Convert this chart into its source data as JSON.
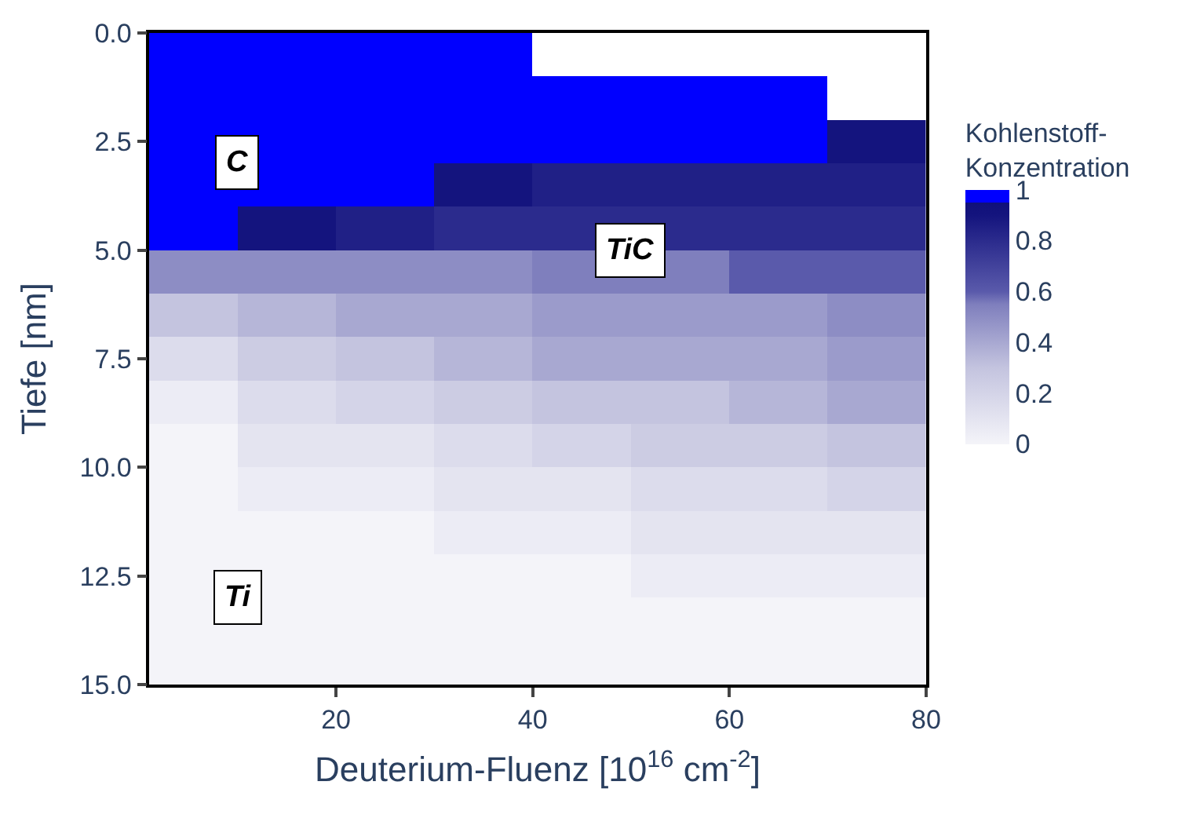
{
  "chart_data": {
    "type": "heatmap",
    "xlabel": "Deuterium-Fluenz [10$^{16}$ cm$^{-2}$]",
    "ylabel": "Tiefe [nm]",
    "clabel": "Kohlenstoff-Konzentration",
    "x": [
      5,
      15,
      25,
      35,
      45,
      55,
      65,
      75
    ],
    "y": [
      0.5,
      1.5,
      2.5,
      3.5,
      4.5,
      5.5,
      6.5,
      7.5,
      8.5,
      9.5,
      10.5,
      11.5,
      12.5,
      13.5,
      14.5
    ],
    "cells": [
      [
        1,
        1,
        1,
        1,
        null,
        null,
        null,
        null
      ],
      [
        1,
        1,
        1,
        1,
        1,
        1,
        1,
        null
      ],
      [
        1,
        1,
        1,
        1,
        1,
        1,
        1,
        0.9
      ],
      [
        1,
        1,
        1,
        0.9,
        0.85,
        0.85,
        0.85,
        0.85
      ],
      [
        1,
        0.9,
        0.85,
        0.8,
        0.8,
        0.8,
        0.8,
        0.8
      ],
      [
        0.5,
        0.5,
        0.5,
        0.5,
        0.55,
        0.55,
        0.6,
        0.6
      ],
      [
        0.3,
        0.35,
        0.4,
        0.4,
        0.45,
        0.45,
        0.45,
        0.5
      ],
      [
        0.15,
        0.25,
        0.3,
        0.35,
        0.4,
        0.4,
        0.4,
        0.45
      ],
      [
        0.05,
        0.15,
        0.2,
        0.25,
        0.3,
        0.3,
        0.35,
        0.4
      ],
      [
        0,
        0.1,
        0.1,
        0.15,
        0.2,
        0.25,
        0.25,
        0.3
      ],
      [
        0,
        0.05,
        0.05,
        0.1,
        0.1,
        0.15,
        0.15,
        0.2
      ],
      [
        0,
        0,
        0,
        0.05,
        0.05,
        0.1,
        0.1,
        0.1
      ],
      [
        0,
        0,
        0,
        0,
        0,
        0.05,
        0.05,
        0.05
      ],
      [
        0,
        0,
        0,
        0,
        0,
        0,
        0,
        0
      ],
      [
        0,
        0,
        0,
        0,
        0,
        0,
        0,
        0
      ]
    ],
    "xlim": [
      1,
      80
    ],
    "xticks": [
      20,
      40,
      60,
      80
    ],
    "ylim": [
      15,
      0
    ],
    "yticks": [
      {
        "value": 0,
        "label": "0.0"
      },
      {
        "value": 2.5,
        "label": "2.5"
      },
      {
        "value": 5,
        "label": "5.0"
      },
      {
        "value": 7.5,
        "label": "7.5"
      },
      {
        "value": 10,
        "label": "10.0"
      },
      {
        "value": 12.5,
        "label": "12.5"
      },
      {
        "value": 15,
        "label": "15.0"
      }
    ],
    "clim": [
      0,
      1
    ],
    "cticks": [
      0,
      0.2,
      0.4,
      0.6,
      0.8,
      1
    ],
    "annotations": [
      "C",
      "TiC",
      "Ti"
    ]
  }
}
